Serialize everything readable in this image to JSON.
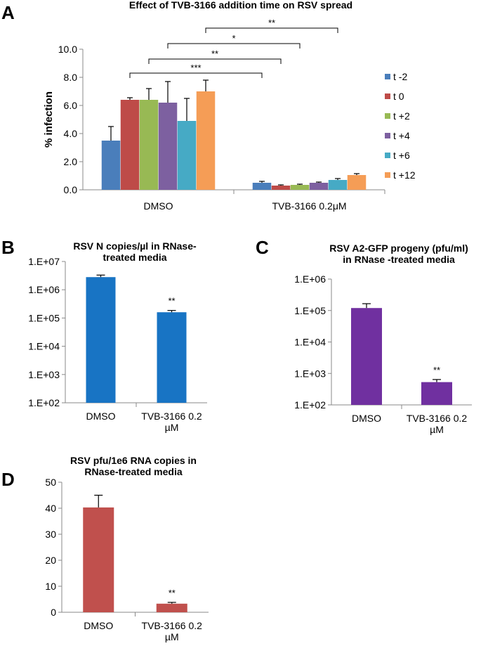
{
  "chart_data": [
    {
      "id": "A",
      "panel_label": "A",
      "type": "bar",
      "title": "Effect of TVB-3166 addition time on RSV spread",
      "xlabel": "",
      "ylabel": "% infection",
      "ylim": [
        0,
        10
      ],
      "yticks": [
        "0.0",
        "2.0",
        "4.0",
        "6.0",
        "8.0",
        "10.0"
      ],
      "categories": [
        "DMSO",
        "TVB-3166 0.2μM"
      ],
      "series": [
        {
          "name": "t -2",
          "color": "#4a7ebb",
          "values": [
            3.5,
            0.5
          ],
          "errors": [
            1.0,
            0.1
          ]
        },
        {
          "name": "t 0",
          "color": "#be4b48",
          "values": [
            6.4,
            0.3
          ],
          "errors": [
            0.15,
            0.05
          ]
        },
        {
          "name": "t +2",
          "color": "#98b954",
          "values": [
            6.4,
            0.35
          ],
          "errors": [
            0.8,
            0.05
          ]
        },
        {
          "name": "t +4",
          "color": "#7d60a0",
          "values": [
            6.2,
            0.5
          ],
          "errors": [
            1.5,
            0.05
          ]
        },
        {
          "name": "t +6",
          "color": "#46aac5",
          "values": [
            4.9,
            0.7
          ],
          "errors": [
            1.6,
            0.1
          ]
        },
        {
          "name": "t +12",
          "color": "#f59d56",
          "values": [
            7.0,
            1.05
          ],
          "errors": [
            0.8,
            0.1
          ]
        }
      ],
      "significance": [
        {
          "label": "***",
          "from": [
            "DMSO",
            "t 0"
          ],
          "to": [
            "TVB-3166 0.2μM",
            "t -2"
          ]
        },
        {
          "label": "**",
          "from": [
            "DMSO",
            "t +2"
          ],
          "to": [
            "TVB-3166 0.2μM",
            "t 0"
          ]
        },
        {
          "label": "*",
          "from": [
            "DMSO",
            "t +4"
          ],
          "to": [
            "TVB-3166 0.2μM",
            "t +2"
          ]
        },
        {
          "label": "**",
          "from": [
            "DMSO",
            "t +12"
          ],
          "to": [
            "TVB-3166 0.2μM",
            "t +6"
          ]
        }
      ]
    },
    {
      "id": "B",
      "panel_label": "B",
      "type": "bar",
      "title": [
        "RSV N copies/µl in RNase-",
        "treated media"
      ],
      "scale": "log",
      "ylim": [
        100,
        10000000
      ],
      "yticks": [
        "1.E+02",
        "1.E+03",
        "1.E+04",
        "1.E+05",
        "1.E+06",
        "1.E+07"
      ],
      "categories": [
        [
          "DMSO"
        ],
        [
          "TVB-3166 0.2",
          "µM"
        ]
      ],
      "values": [
        2800000,
        160000
      ],
      "errors_upper": [
        3300000,
        185000
      ],
      "color": "#1874c4",
      "significance_labels": [
        "",
        "**"
      ]
    },
    {
      "id": "C",
      "panel_label": "C",
      "type": "bar",
      "title": [
        "RSV A2-GFP progeny (pfu/ml)",
        "in RNase -treated media"
      ],
      "scale": "log",
      "ylim": [
        100,
        1000000
      ],
      "yticks": [
        "1.E+02",
        "1.E+03",
        "1.E+04",
        "1.E+05",
        "1.E+06"
      ],
      "categories": [
        [
          "DMSO"
        ],
        [
          "TVB-3166 0.2",
          "µM"
        ]
      ],
      "values": [
        120000,
        530
      ],
      "errors_upper": [
        165000,
        640
      ],
      "color": "#7030a0",
      "significance_labels": [
        "",
        "**"
      ]
    },
    {
      "id": "D",
      "panel_label": "D",
      "type": "bar",
      "title": [
        "RSV pfu/1e6 RNA copies in",
        "RNase-treated media"
      ],
      "scale": "linear",
      "ylim": [
        0,
        50
      ],
      "yticks": [
        "0",
        "10",
        "20",
        "30",
        "40",
        "50"
      ],
      "categories": [
        [
          "DMSO"
        ],
        [
          "TVB-3166 0.2",
          "µM"
        ]
      ],
      "values": [
        40.3,
        3.3
      ],
      "errors": [
        4.7,
        0.5
      ],
      "color": "#c0504d",
      "significance_labels": [
        "",
        "**"
      ]
    }
  ]
}
